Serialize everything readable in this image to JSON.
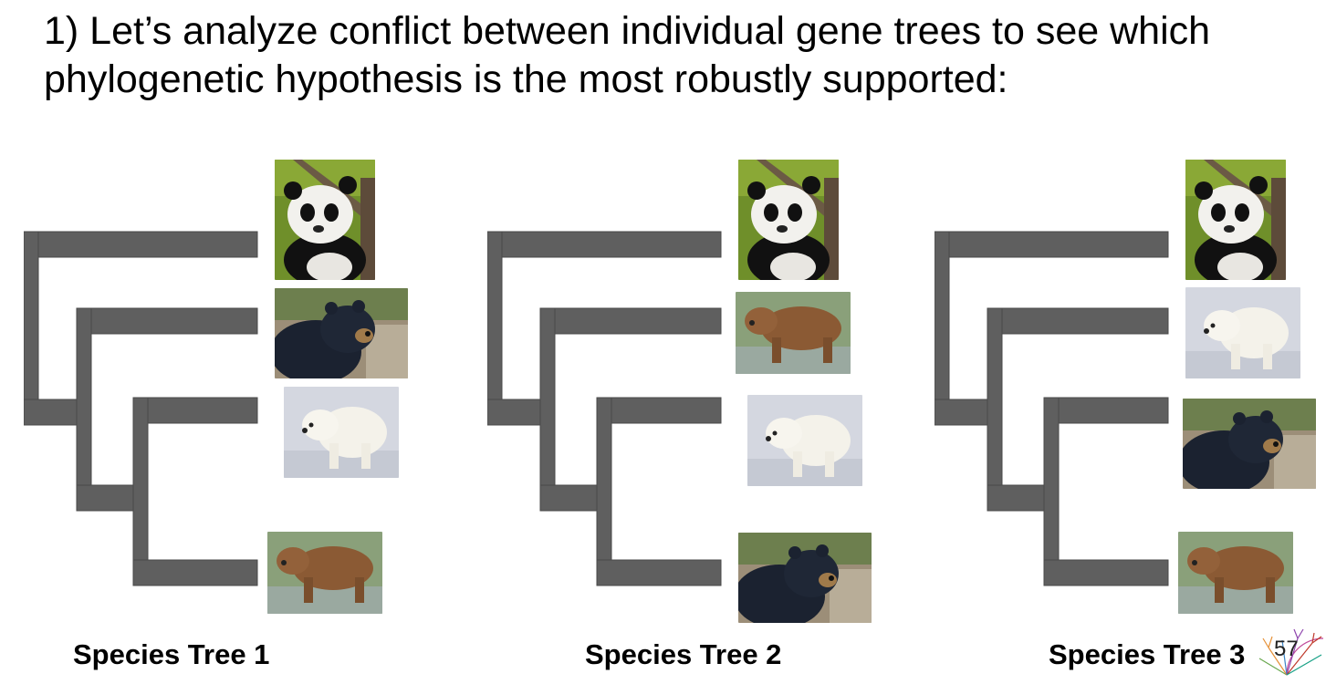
{
  "slide": {
    "title_line1": "1) Let’s analyze conflict between individual gene trees to see which",
    "title_line2": "phylogenetic hypothesis is the most robustly supported:",
    "page_number": "57"
  },
  "colors": {
    "branch": "#5f5f5f",
    "branch_edge": "#4a4a4a"
  },
  "trees": [
    {
      "label": "Species Tree 1",
      "tips": [
        "panda-photo",
        "black-bear-photo",
        "polar-bear-photo",
        "brown-bear-photo"
      ]
    },
    {
      "label": "Species Tree 2",
      "tips": [
        "panda-photo",
        "brown-bear-photo",
        "polar-bear-photo",
        "black-bear-photo"
      ]
    },
    {
      "label": "Species Tree 3",
      "tips": [
        "panda-photo",
        "polar-bear-photo",
        "black-bear-photo",
        "brown-bear-photo"
      ]
    }
  ]
}
